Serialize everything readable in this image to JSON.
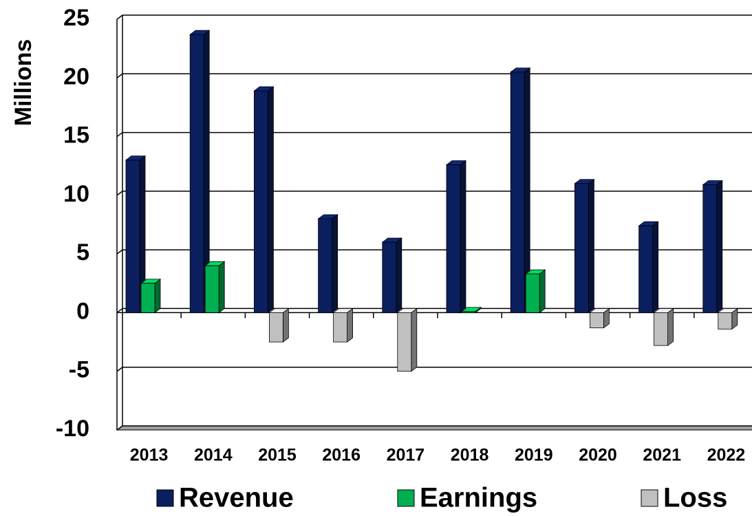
{
  "chart_data": {
    "type": "bar3d",
    "y_label": "Millions",
    "categories": [
      "2013",
      "2014",
      "2015",
      "2016",
      "2017",
      "2018",
      "2019",
      "2020",
      "2021",
      "2022"
    ],
    "series": [
      {
        "name": "Revenue",
        "color": "#0b1f5e",
        "values": [
          13.0,
          23.7,
          18.9,
          8.0,
          6.0,
          12.6,
          20.5,
          11.0,
          7.4,
          10.9
        ]
      },
      {
        "name": "Earnings",
        "color": "#00b050",
        "values": [
          2.5,
          4.0,
          null,
          null,
          null,
          0.1,
          3.3,
          null,
          null,
          null
        ]
      },
      {
        "name": "Loss",
        "color": "#c0c0c0",
        "values": [
          null,
          null,
          -2.5,
          -2.5,
          -5.0,
          null,
          null,
          -1.3,
          -2.8,
          -1.4
        ]
      }
    ],
    "ylim": [
      -10,
      25
    ],
    "yticks": [
      -10,
      -5,
      0,
      5,
      10,
      15,
      20,
      25
    ],
    "grid": true
  }
}
